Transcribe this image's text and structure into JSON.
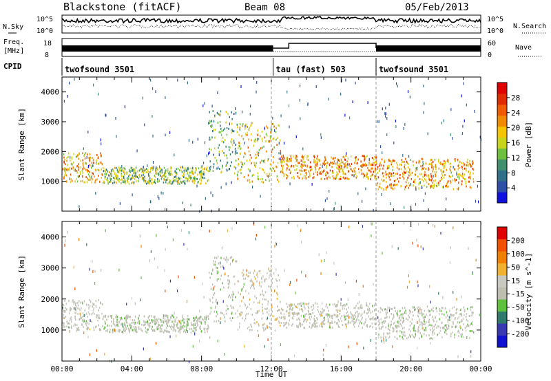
{
  "header": {
    "title": "Blackstone (fitACF)",
    "beam": "Beam 08",
    "date": "05/Feb/2013"
  },
  "aux_panels": {
    "nsky_label": "N.Sky",
    "nsearch_label": "N.Search",
    "nsky_ticks": [
      "10^5",
      "10^0"
    ],
    "nsearch_ticks": [
      "10^5",
      "10^0"
    ],
    "freq_label": "Freq.",
    "freq_unit": "[MHz]",
    "freq_ticks": [
      "18",
      "8"
    ],
    "nave_label": "Nave",
    "nave_ticks": [
      "60",
      "0"
    ],
    "cpid_label": "CPID",
    "cpid_segments": [
      {
        "label": "twofsound 3501",
        "start_hour": 0,
        "end_hour": 12.1
      },
      {
        "label": "tau (fast) 503",
        "start_hour": 12.1,
        "end_hour": 18
      },
      {
        "label": "twofsound 3501",
        "start_hour": 18,
        "end_hour": 24
      }
    ]
  },
  "colors": {
    "power_scale": [
      "#1010e0",
      "#2e4fa8",
      "#2f6f8a",
      "#3f8f6f",
      "#6fbf3f",
      "#c8d41a",
      "#f5c400",
      "#f08a00",
      "#f05a00",
      "#e02a00",
      "#e00000"
    ],
    "velocity_scale": [
      "#1010d0",
      "#3a3ab0",
      "#2f7a6a",
      "#5fbf3f",
      "#bdbdb0",
      "#c8c8c0",
      "#f0b030",
      "#f08000",
      "#f05000",
      "#e00000"
    ]
  },
  "chart_data": [
    {
      "type": "heatmap",
      "title": "Power",
      "xlabel": "",
      "ylabel": "Slant Range [km]",
      "xlim": [
        0,
        24
      ],
      "ylim": [
        0,
        4500
      ],
      "yticks": [
        "1000",
        "2000",
        "3000",
        "4000"
      ],
      "colorbar": {
        "label": "Power [dB]",
        "ticks": [
          "4",
          "8",
          "12",
          "16",
          "20",
          "24",
          "28"
        ],
        "range": [
          0,
          32
        ]
      },
      "echo_regions": [
        {
          "t_start": 0.0,
          "t_end": 2.3,
          "r_low": 1000,
          "r_high": 2000,
          "value": 20
        },
        {
          "t_start": 2.3,
          "t_end": 8.4,
          "r_low": 950,
          "r_high": 1500,
          "value": 14
        },
        {
          "t_start": 8.4,
          "t_end": 10.0,
          "r_low": 1300,
          "r_high": 3400,
          "value": 12
        },
        {
          "t_start": 10.0,
          "t_end": 12.5,
          "r_low": 1000,
          "r_high": 3000,
          "value": 18
        },
        {
          "t_start": 12.5,
          "t_end": 18.0,
          "r_low": 1100,
          "r_high": 1900,
          "value": 22
        },
        {
          "t_start": 18.0,
          "t_end": 23.6,
          "r_low": 750,
          "r_high": 1800,
          "value": 21
        }
      ]
    },
    {
      "type": "heatmap",
      "title": "Velocity",
      "xlabel": "Time UT",
      "ylabel": "Slant Range [km]",
      "xlim": [
        0,
        24
      ],
      "ylim": [
        0,
        4500
      ],
      "xticks": [
        "00:00",
        "04:00",
        "08:00",
        "12:00",
        "16:00",
        "20:00",
        "00:00"
      ],
      "yticks": [
        "1000",
        "2000",
        "3000",
        "4000"
      ],
      "colorbar": {
        "label": "Velocity [m s^-1]",
        "ticks": [
          "200",
          "100",
          "50",
          "15",
          "-15",
          "-50",
          "-100",
          "-200"
        ],
        "range": [
          -250,
          250
        ]
      },
      "echo_regions": [
        {
          "t_start": 0.0,
          "t_end": 2.3,
          "r_low": 1000,
          "r_high": 2000,
          "value": 0
        },
        {
          "t_start": 2.3,
          "t_end": 8.4,
          "r_low": 950,
          "r_high": 1500,
          "value": -40
        },
        {
          "t_start": 8.4,
          "t_end": 10.0,
          "r_low": 1300,
          "r_high": 3400,
          "value": -40
        },
        {
          "t_start": 10.0,
          "t_end": 12.5,
          "r_low": 1000,
          "r_high": 3000,
          "value": 30
        },
        {
          "t_start": 12.5,
          "t_end": 18.0,
          "r_low": 1100,
          "r_high": 1900,
          "value": 0
        },
        {
          "t_start": 18.0,
          "t_end": 23.6,
          "r_low": 750,
          "r_high": 1800,
          "value": -30
        }
      ]
    }
  ]
}
